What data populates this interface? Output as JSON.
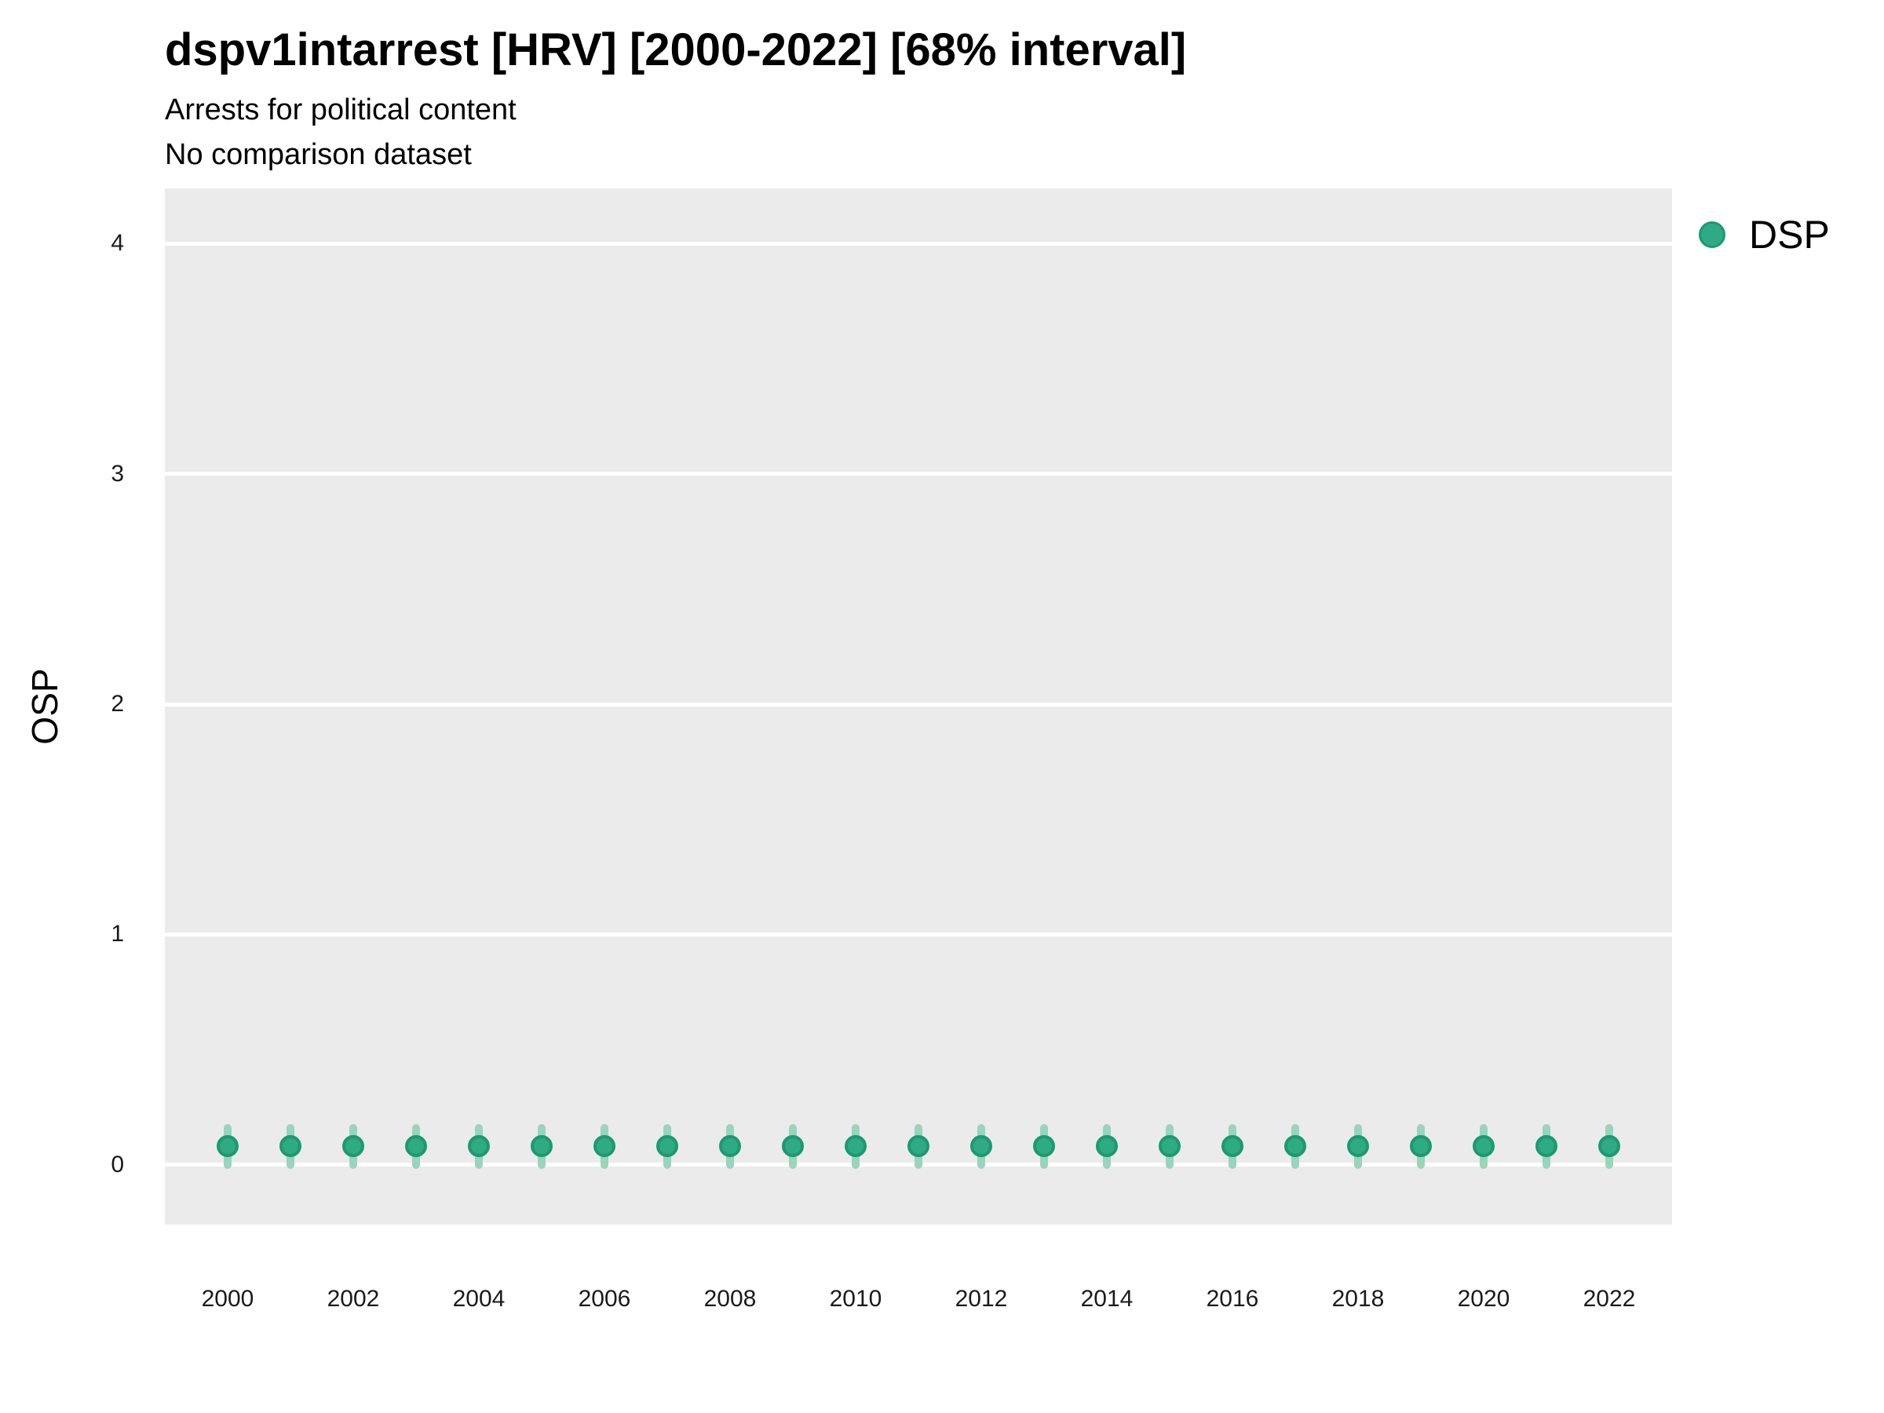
{
  "colors": {
    "point_fill": "#2eaa84",
    "point_stroke": "#1b9a71",
    "interval_fill": "#99d4bc",
    "panel_background": "#ebebeb",
    "gridline": "#ffffff",
    "text": "#000000"
  },
  "chart_data": {
    "type": "scatter",
    "title": "dspv1intarrest [HRV] [2000-2022] [68% interval]",
    "subtitle": "Arrests for political content",
    "comparison_note": "No comparison dataset",
    "xlabel": "",
    "ylabel": "OSP",
    "xlim": [
      1999,
      2023
    ],
    "ylim": [
      -0.26,
      4.24
    ],
    "x_ticks": [
      2000,
      2002,
      2004,
      2006,
      2008,
      2010,
      2012,
      2014,
      2016,
      2018,
      2020,
      2022
    ],
    "y_ticks": [
      0,
      1,
      2,
      3,
      4
    ],
    "grid": "major-horizontal-only",
    "legend": {
      "position": "right",
      "entries": [
        {
          "label": "DSP",
          "color": "#2eaa84"
        }
      ]
    },
    "series": [
      {
        "name": "DSP",
        "interval_label": "68% interval",
        "points": [
          {
            "year": 2000,
            "value": 0.08,
            "lo": 0.0,
            "hi": 0.16
          },
          {
            "year": 2001,
            "value": 0.08,
            "lo": 0.0,
            "hi": 0.16
          },
          {
            "year": 2002,
            "value": 0.08,
            "lo": 0.0,
            "hi": 0.16
          },
          {
            "year": 2003,
            "value": 0.08,
            "lo": 0.0,
            "hi": 0.16
          },
          {
            "year": 2004,
            "value": 0.08,
            "lo": 0.0,
            "hi": 0.16
          },
          {
            "year": 2005,
            "value": 0.08,
            "lo": 0.0,
            "hi": 0.16
          },
          {
            "year": 2006,
            "value": 0.08,
            "lo": 0.0,
            "hi": 0.16
          },
          {
            "year": 2007,
            "value": 0.08,
            "lo": 0.0,
            "hi": 0.16
          },
          {
            "year": 2008,
            "value": 0.08,
            "lo": 0.0,
            "hi": 0.16
          },
          {
            "year": 2009,
            "value": 0.08,
            "lo": 0.0,
            "hi": 0.16
          },
          {
            "year": 2010,
            "value": 0.08,
            "lo": 0.0,
            "hi": 0.16
          },
          {
            "year": 2011,
            "value": 0.08,
            "lo": 0.0,
            "hi": 0.16
          },
          {
            "year": 2012,
            "value": 0.08,
            "lo": 0.0,
            "hi": 0.16
          },
          {
            "year": 2013,
            "value": 0.08,
            "lo": 0.0,
            "hi": 0.16
          },
          {
            "year": 2014,
            "value": 0.08,
            "lo": 0.0,
            "hi": 0.16
          },
          {
            "year": 2015,
            "value": 0.08,
            "lo": 0.0,
            "hi": 0.16
          },
          {
            "year": 2016,
            "value": 0.08,
            "lo": 0.0,
            "hi": 0.16
          },
          {
            "year": 2017,
            "value": 0.08,
            "lo": 0.0,
            "hi": 0.16
          },
          {
            "year": 2018,
            "value": 0.08,
            "lo": 0.0,
            "hi": 0.16
          },
          {
            "year": 2019,
            "value": 0.08,
            "lo": 0.0,
            "hi": 0.16
          },
          {
            "year": 2020,
            "value": 0.08,
            "lo": 0.0,
            "hi": 0.16
          },
          {
            "year": 2021,
            "value": 0.08,
            "lo": 0.0,
            "hi": 0.16
          },
          {
            "year": 2022,
            "value": 0.08,
            "lo": 0.0,
            "hi": 0.16
          }
        ]
      }
    ]
  }
}
